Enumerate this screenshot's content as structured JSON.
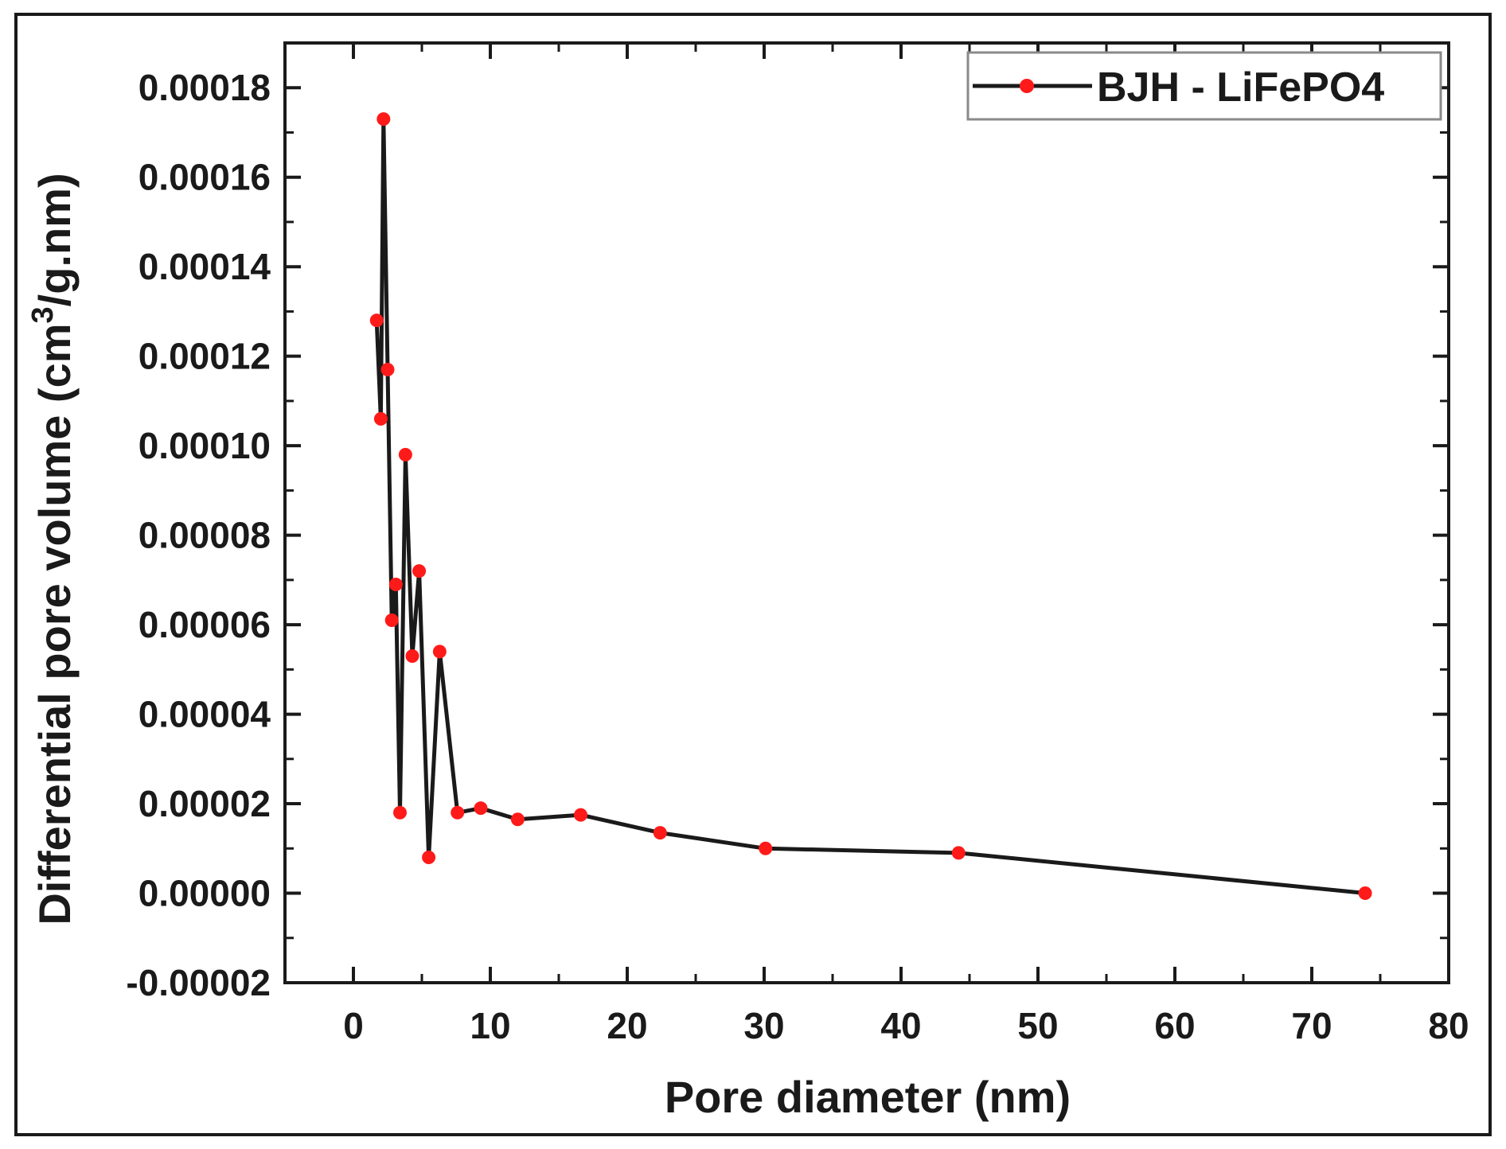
{
  "chart_data": {
    "type": "line",
    "xlabel": "Pore diameter (nm)",
    "ylabel_parts": {
      "before": "Differential pore volume (cm",
      "sup": "3",
      "after": "/g.nm)"
    },
    "xlim": [
      -5,
      80
    ],
    "ylim": [
      -2e-05,
      0.00019
    ],
    "xticks": [
      0,
      10,
      20,
      30,
      40,
      50,
      60,
      70,
      80
    ],
    "xtick_labels": [
      "0",
      "10",
      "20",
      "30",
      "40",
      "50",
      "60",
      "70",
      "80"
    ],
    "yticks": [
      -2e-05,
      0,
      2e-05,
      4e-05,
      6e-05,
      8e-05,
      0.0001,
      0.00012,
      0.00014,
      0.00016,
      0.00018
    ],
    "ytick_labels": [
      "-0.00002",
      "0.00000",
      "0.00002",
      "0.00004",
      "0.00006",
      "0.00008",
      "0.00010",
      "0.00012",
      "0.00014",
      "0.00016",
      "0.00018"
    ],
    "grid": false,
    "legend": {
      "position": "top-right"
    },
    "series": [
      {
        "name": "BJH - LiFePO4",
        "line_color": "#1a1a1a",
        "marker_color": "#ff1a1a",
        "x": [
          1.7,
          2.0,
          2.2,
          2.5,
          2.8,
          3.1,
          3.4,
          3.8,
          4.3,
          4.8,
          5.5,
          6.3,
          7.6,
          9.3,
          12.0,
          16.6,
          22.4,
          30.1,
          44.2,
          73.9
        ],
        "y": [
          0.000128,
          0.000106,
          0.000173,
          0.000117,
          6.1e-05,
          6.9e-05,
          1.8e-05,
          9.8e-05,
          5.3e-05,
          7.2e-05,
          8e-06,
          5.4e-05,
          1.8e-05,
          1.9e-05,
          1.65e-05,
          1.75e-05,
          1.35e-05,
          1e-05,
          9e-06,
          0.0
        ]
      }
    ]
  }
}
